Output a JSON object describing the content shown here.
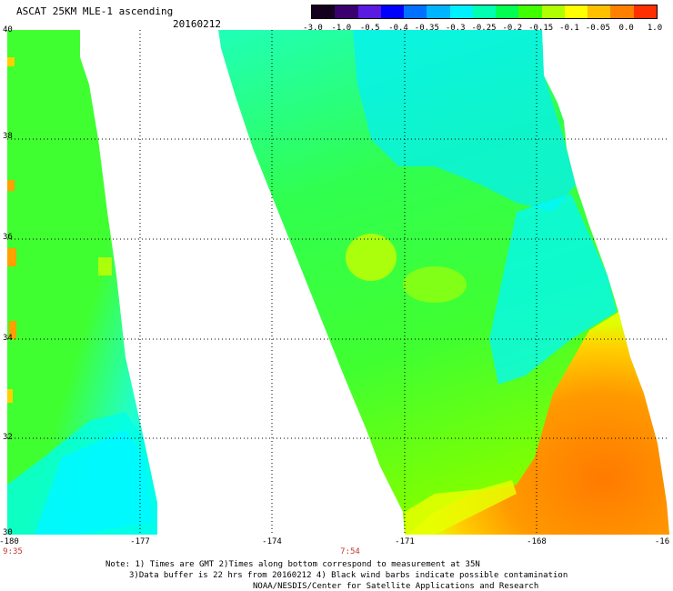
{
  "header": {
    "title": "ASCAT 25KM MLE-1 ascending",
    "date": "20160212"
  },
  "colorbar": {
    "labels": [
      "-3.0",
      "-1.0",
      "-0.5",
      "-0.4",
      "-0.35",
      "-0.3",
      "-0.25",
      "-0.2",
      "-0.15",
      "-0.1",
      "-0.05",
      "0.0",
      "1.0"
    ],
    "colors": [
      "#14001e",
      "#3a0070",
      "#5a1ae0",
      "#0000ff",
      "#0070ff",
      "#00b4ff",
      "#00f0ff",
      "#00ffb0",
      "#00ff50",
      "#40ff00",
      "#b0ff00",
      "#ffff00",
      "#ffc000",
      "#ff8000",
      "#ff3000"
    ]
  },
  "axes": {
    "lat_labels": [
      "40",
      "38",
      "36",
      "34",
      "32",
      "30"
    ],
    "lon_labels": [
      "-180",
      "-177",
      "-174",
      "-171",
      "-168",
      "-16"
    ]
  },
  "times": {
    "left": "9:35",
    "middle": "7:54"
  },
  "footer": {
    "line1": "Note: 1) Times are GMT 2)Times along bottom correspond to measurement at 35N",
    "line2": "3)Data buffer is 22 hrs from 20160212 4) Black wind barbs indicate possible contamination",
    "line3": "NOAA/NESDIS/Center for Satellite Applications and Research"
  },
  "chart_data": {
    "type": "heatmap",
    "title": "ASCAT 25KM MLE-1 ascending",
    "date": "20160212",
    "xlim": [
      -180,
      -165
    ],
    "ylim": [
      30,
      40
    ],
    "swaths": [
      {
        "name": "swath-west",
        "lon_range": [
          -179.9,
          -176.6
        ],
        "dominant_values": "-0.15 to -0.25 (green to cyan), cyan (-0.25) toward southeast"
      },
      {
        "name": "swath-east",
        "lon_range": [
          -175.3,
          -165.0
        ],
        "dominant_values": "-0.2 to -0.25 (cyan/green) north and west; -0.05 to 1.0 (yellow/orange) in southeast corner"
      }
    ]
  }
}
